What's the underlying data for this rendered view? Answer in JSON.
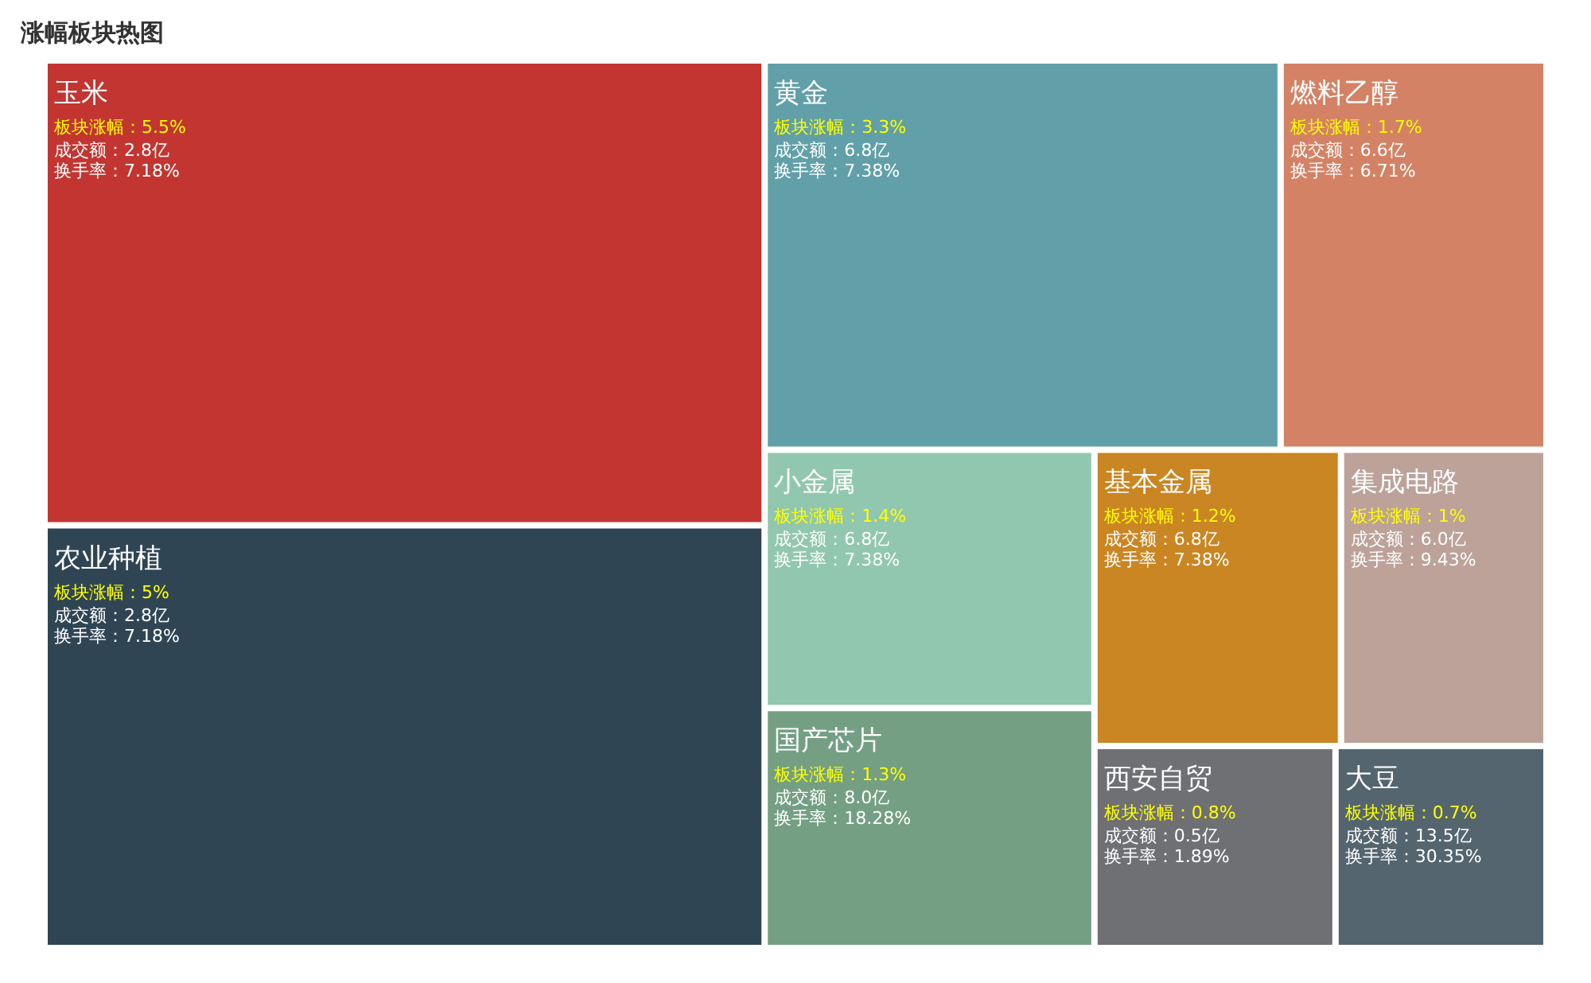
{
  "chart_data": {
    "type": "other",
    "title": "涨幅板块热图",
    "categories": [
      "玉米",
      "农业种植",
      "黄金",
      "燃料乙醇",
      "小金属",
      "国产芯片",
      "基本金属",
      "集成电路",
      "西安自贸",
      "大豆"
    ],
    "values": [
      5.5,
      5,
      3.3,
      1.7,
      1.4,
      1.3,
      1.2,
      1,
      0.8,
      0.7
    ],
    "value_labels": [
      "板块涨幅：5.5%",
      "板块涨幅：5%",
      "板块涨幅：3.3%",
      "板块涨幅：1.7%",
      "板块涨幅：1.4%",
      "板块涨幅：1.3%",
      "板块涨幅：1.2%",
      "板块涨幅：1%",
      "板块涨幅：0.8%",
      "板块涨幅：0.7%"
    ],
    "colors": [
      "#c23531",
      "#2f4554",
      "#61a0a8",
      "#d48265",
      "#91c7ae",
      "#749f83",
      "#ca8622",
      "#bda29a",
      "#6e7074",
      "#546570"
    ],
    "annotations": [
      {
        "text": "成交额：2.8亿",
        "x": "玉米"
      },
      {
        "text": "换手率：7.18%",
        "x": "玉米"
      },
      {
        "text": "成交额：2.8亿",
        "x": "农业种植"
      },
      {
        "text": "换手率：7.18%",
        "x": "农业种植"
      },
      {
        "text": "成交额：6.8亿",
        "x": "黄金"
      },
      {
        "text": "换手率：7.38%",
        "x": "黄金"
      },
      {
        "text": "成交额：6.6亿",
        "x": "燃料乙醇"
      },
      {
        "text": "换手率：6.71%",
        "x": "燃料乙醇"
      },
      {
        "text": "成交额：6.8亿",
        "x": "小金属"
      },
      {
        "text": "换手率：7.38%",
        "x": "小金属"
      },
      {
        "text": "成交额：8.0亿",
        "x": "国产芯片"
      },
      {
        "text": "换手率：18.28%",
        "x": "国产芯片"
      },
      {
        "text": "成交额：6.8亿",
        "x": "基本金属"
      },
      {
        "text": "换手率：7.38%",
        "x": "基本金属"
      },
      {
        "text": "成交额：6.0亿",
        "x": "集成电路"
      },
      {
        "text": "换手率：9.43%",
        "x": "集成电路"
      },
      {
        "text": "成交额：0.5亿",
        "x": "西安自贸"
      },
      {
        "text": "换手率：1.89%",
        "x": "西安自贸"
      },
      {
        "text": "成交额：13.5亿",
        "x": "大豆"
      },
      {
        "text": "换手率：30.35%",
        "x": "大豆"
      }
    ]
  }
}
